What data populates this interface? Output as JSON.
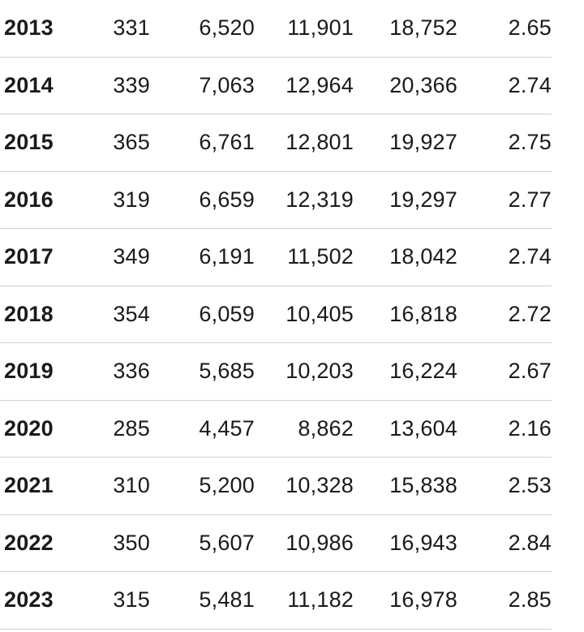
{
  "table": {
    "rows": [
      [
        "2013",
        "331",
        "6,520",
        "11,901",
        "18,752",
        "2.65"
      ],
      [
        "2014",
        "339",
        "7,063",
        "12,964",
        "20,366",
        "2.74"
      ],
      [
        "2015",
        "365",
        "6,761",
        "12,801",
        "19,927",
        "2.75"
      ],
      [
        "2016",
        "319",
        "6,659",
        "12,319",
        "19,297",
        "2.77"
      ],
      [
        "2017",
        "349",
        "6,191",
        "11,502",
        "18,042",
        "2.74"
      ],
      [
        "2018",
        "354",
        "6,059",
        "10,405",
        "16,818",
        "2.72"
      ],
      [
        "2019",
        "336",
        "5,685",
        "10,203",
        "16,224",
        "2.67"
      ],
      [
        "2020",
        "285",
        "4,457",
        "8,862",
        "13,604",
        "2.16"
      ],
      [
        "2021",
        "310",
        "5,200",
        "10,328",
        "15,838",
        "2.53"
      ],
      [
        "2022",
        "350",
        "5,607",
        "10,986",
        "16,943",
        "2.84"
      ],
      [
        "2023",
        "315",
        "5,481",
        "11,182",
        "16,978",
        "2.85"
      ]
    ]
  }
}
